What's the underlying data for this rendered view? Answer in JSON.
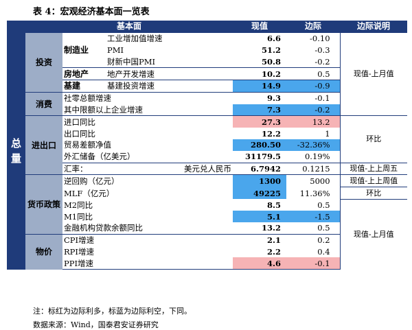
{
  "caption": "表 4：宏观经济基本面一览表",
  "header": {
    "fundamentals": "基本面",
    "current": "现值",
    "margin": "边际",
    "note": "边际说明"
  },
  "total_label": "总量",
  "categories": {
    "investment": "投资",
    "consumption": "消费",
    "trade": "进出口",
    "monetary": "货币政策",
    "price": "物价"
  },
  "subcategories": {
    "manufacturing": "制造业",
    "real_estate": "房地产",
    "infrastructure": "基建"
  },
  "rows": [
    {
      "label": "工业增加值增速",
      "value": "6.6",
      "margin": "-0.10",
      "highlight": ""
    },
    {
      "label": "PMI",
      "value": "51.2",
      "margin": "-0.3",
      "highlight": ""
    },
    {
      "label": "财新中国PMI",
      "value": "50.8",
      "margin": "-0.2",
      "highlight": ""
    },
    {
      "label": "地产开发增速",
      "value": "10.2",
      "margin": "0.5",
      "highlight": ""
    },
    {
      "label": "基建投资增速",
      "value": "14.9",
      "margin": "-0.9",
      "highlight": "blue"
    },
    {
      "label": "社零总额增速",
      "value": "9.3",
      "margin": "-0.1",
      "highlight": ""
    },
    {
      "label": "其中限额以上企业增速",
      "value": "7.3",
      "margin": "-0.2",
      "highlight": "blue"
    },
    {
      "label": "进口同比",
      "value": "27.3",
      "margin": "13.2",
      "highlight": "pink"
    },
    {
      "label": "出口同比",
      "value": "12.2",
      "margin": "1",
      "highlight": ""
    },
    {
      "label": "贸易差额净值",
      "value": "280.50",
      "margin": "-32.36%",
      "highlight": "blue"
    },
    {
      "label": "外汇储备（亿美元）",
      "value": "31179.5",
      "margin": "0.19%",
      "highlight": ""
    },
    {
      "label": "汇率：",
      "label2": "美元兑人民币",
      "value": "6.7942",
      "margin": "0.1215",
      "highlight": ""
    },
    {
      "label": "逆回购（亿元）",
      "value": "1300",
      "margin": "5000",
      "highlight": "blue"
    },
    {
      "label": "MLF（亿元）",
      "value": "49225",
      "margin": "11.36%",
      "highlight": "blue"
    },
    {
      "label": "M2同比",
      "value": "8.5",
      "margin": "0.5",
      "highlight": ""
    },
    {
      "label": "M1同比",
      "value": "5.1",
      "margin": "-1.5",
      "highlight": "blue"
    },
    {
      "label": "金融机构贷款余额同比",
      "value": "13.2",
      "margin": "0.5",
      "highlight": ""
    },
    {
      "label": "CPI增速",
      "value": "2.1",
      "margin": "0.2",
      "highlight": ""
    },
    {
      "label": "RPI增速",
      "value": "2.2",
      "margin": "0.4",
      "highlight": ""
    },
    {
      "label": "PPI增速",
      "value": "4.6",
      "margin": "-0.1",
      "highlight": "pink"
    }
  ],
  "notes": {
    "mom_prev_month_1": "现值-上月值",
    "yoy_1": "环比",
    "prev_friday": "现值-上上周五",
    "prev_week": "现值-上上周值",
    "yoy_2": "环比",
    "mom_prev_month_2": "现值-上月值"
  },
  "footer": {
    "note": "注：标红为边际利多，标蓝为边际利空，下同。",
    "source": "数据来源：Wind，国泰君安证券研究"
  },
  "colors": {
    "header": "#1f3b7a",
    "category": "#9dadc7",
    "blue": "#4aa6ec",
    "pink": "#f6b3b5"
  }
}
